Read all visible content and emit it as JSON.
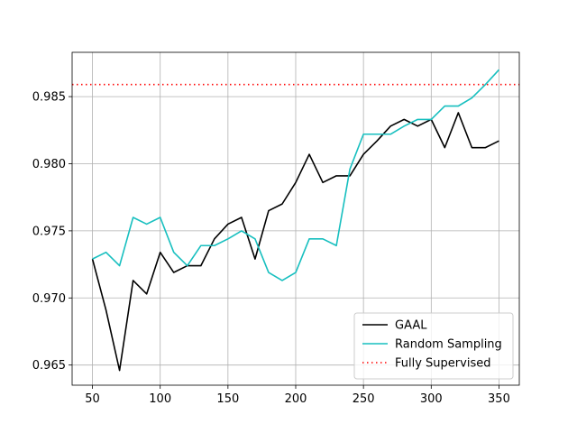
{
  "chart_data": {
    "type": "line",
    "title": "",
    "xlabel": "",
    "ylabel": "",
    "xlim": [
      35,
      365
    ],
    "ylim": [
      0.9635,
      0.9883
    ],
    "xticks": [
      50,
      100,
      150,
      200,
      250,
      300,
      350
    ],
    "yticks": [
      0.965,
      0.97,
      0.975,
      0.98,
      0.985
    ],
    "xtick_labels": [
      "50",
      "100",
      "150",
      "200",
      "250",
      "300",
      "350"
    ],
    "ytick_labels": [
      "0.965",
      "0.970",
      "0.975",
      "0.980",
      "0.985"
    ],
    "grid": true,
    "legend_position": "lower-right",
    "x": [
      50,
      60,
      70,
      80,
      90,
      100,
      110,
      120,
      130,
      140,
      150,
      160,
      170,
      180,
      190,
      200,
      210,
      220,
      230,
      240,
      250,
      260,
      270,
      280,
      290,
      300,
      310,
      320,
      330,
      340,
      350
    ],
    "series": [
      {
        "name": "GAAL",
        "color": "#000000",
        "style": "solid",
        "values": [
          0.9729,
          0.9691,
          0.9646,
          0.9713,
          0.9703,
          0.9734,
          0.9719,
          0.9724,
          0.9724,
          0.9744,
          0.9755,
          0.976,
          0.9729,
          0.9765,
          0.977,
          0.9786,
          0.9807,
          0.9786,
          0.9791,
          0.9791,
          0.9807,
          0.9817,
          0.9828,
          0.9833,
          0.9828,
          0.9833,
          0.9812,
          0.9838,
          0.9812,
          0.9812,
          0.9817
        ]
      },
      {
        "name": "Random Sampling",
        "color": "#17bfbf",
        "style": "solid",
        "values": [
          0.9729,
          0.9734,
          0.9724,
          0.976,
          0.9755,
          0.976,
          0.9734,
          0.9724,
          0.9739,
          0.9739,
          0.9744,
          0.975,
          0.9744,
          0.9719,
          0.9713,
          0.9719,
          0.9744,
          0.9744,
          0.9739,
          0.9796,
          0.9822,
          0.9822,
          0.9822,
          0.9828,
          0.9833,
          0.9833,
          0.9843,
          0.9843,
          0.9849,
          0.9859,
          0.987
        ]
      }
    ],
    "reference_lines": [
      {
        "name": "Fully Supervised",
        "color": "#ff0000",
        "style": "dotted",
        "y": 0.9859
      }
    ]
  }
}
